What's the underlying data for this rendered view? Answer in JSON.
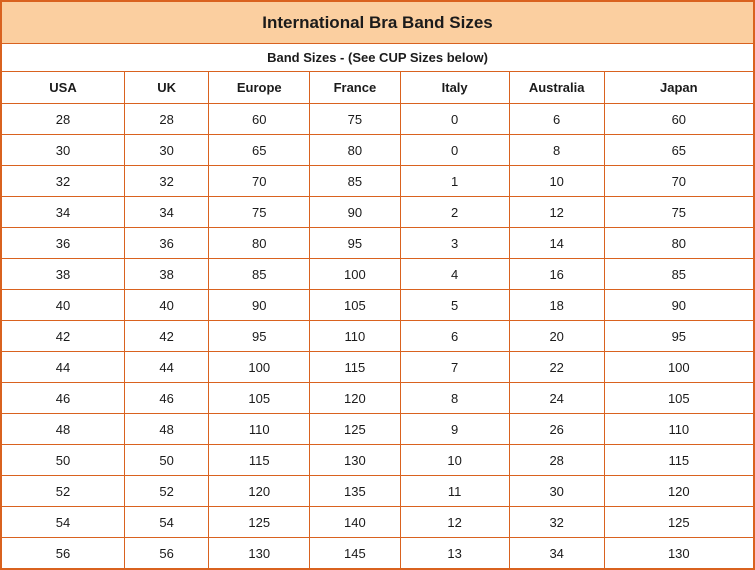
{
  "colors": {
    "border": "#d9621f",
    "title_background": "#fbcfa0",
    "text": "#1b1b1b"
  },
  "table": {
    "title": "International Bra Band Sizes",
    "subtitle": "Band Sizes - (See CUP Sizes below)",
    "columns": [
      "USA",
      "UK",
      "Europe",
      "France",
      "Italy",
      "Australia",
      "Japan"
    ],
    "rows": [
      [
        "28",
        "28",
        "60",
        "75",
        "0",
        "6",
        "60"
      ],
      [
        "30",
        "30",
        "65",
        "80",
        "0",
        "8",
        "65"
      ],
      [
        "32",
        "32",
        "70",
        "85",
        "1",
        "10",
        "70"
      ],
      [
        "34",
        "34",
        "75",
        "90",
        "2",
        "12",
        "75"
      ],
      [
        "36",
        "36",
        "80",
        "95",
        "3",
        "14",
        "80"
      ],
      [
        "38",
        "38",
        "85",
        "100",
        "4",
        "16",
        "85"
      ],
      [
        "40",
        "40",
        "90",
        "105",
        "5",
        "18",
        "90"
      ],
      [
        "42",
        "42",
        "95",
        "110",
        "6",
        "20",
        "95"
      ],
      [
        "44",
        "44",
        "100",
        "115",
        "7",
        "22",
        "100"
      ],
      [
        "46",
        "46",
        "105",
        "120",
        "8",
        "24",
        "105"
      ],
      [
        "48",
        "48",
        "110",
        "125",
        "9",
        "26",
        "110"
      ],
      [
        "50",
        "50",
        "115",
        "130",
        "10",
        "28",
        "115"
      ],
      [
        "52",
        "52",
        "120",
        "135",
        "11",
        "30",
        "120"
      ],
      [
        "54",
        "54",
        "125",
        "140",
        "12",
        "32",
        "125"
      ],
      [
        "56",
        "56",
        "130",
        "145",
        "13",
        "34",
        "130"
      ]
    ]
  }
}
